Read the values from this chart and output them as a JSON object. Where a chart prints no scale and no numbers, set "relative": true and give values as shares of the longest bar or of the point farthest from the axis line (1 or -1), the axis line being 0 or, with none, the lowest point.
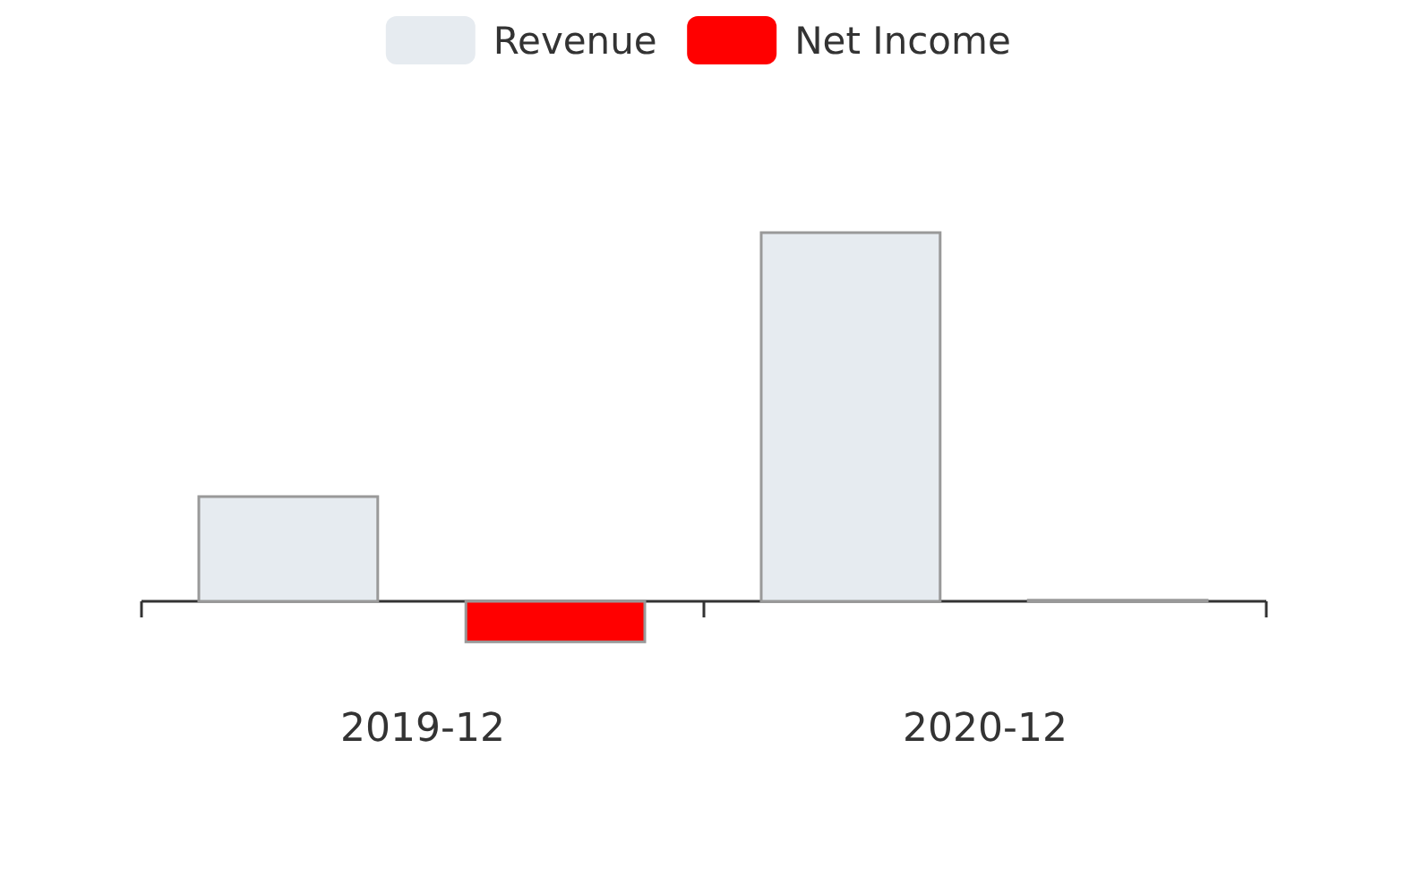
{
  "chart_data": {
    "type": "bar",
    "relative": true,
    "categories": [
      "2019-12",
      "2020-12"
    ],
    "series": [
      {
        "name": "Revenue",
        "color": "#e6ebf0",
        "values": [
          0.284,
          1
        ]
      },
      {
        "name": "Net Income",
        "color": "#ff0000",
        "values": [
          -0.11,
          0.003
        ]
      }
    ],
    "legend": "top"
  }
}
